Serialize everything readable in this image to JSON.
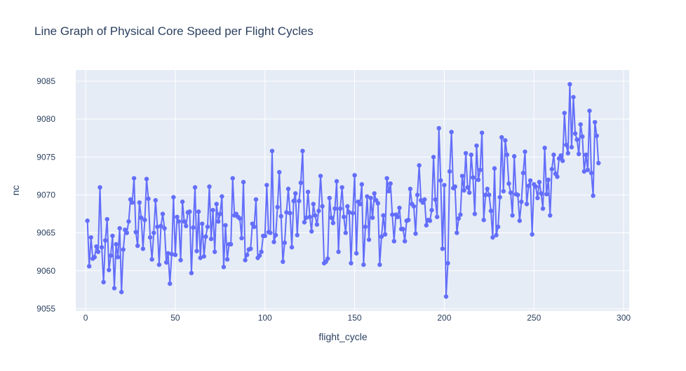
{
  "chart_data": {
    "type": "line",
    "title": "Line Graph of Physical Core Speed per Flight Cycles",
    "x_label": "flight_cycle",
    "y_label": "nc",
    "xlim": [
      -5.5,
      303.1
    ],
    "ylim": [
      9054.72,
      9086.48
    ],
    "xticks": [
      0,
      50,
      100,
      150,
      200,
      250,
      300
    ],
    "yticks": [
      9055,
      9060,
      9065,
      9070,
      9075,
      9080,
      9085
    ],
    "grid": true,
    "series": [
      {
        "name": "nc",
        "color": "#636efa",
        "x": [
          1,
          2,
          3,
          4,
          5,
          6,
          7,
          8,
          9,
          10,
          11,
          12,
          13,
          14,
          15,
          16,
          17,
          18,
          19,
          20,
          21,
          22,
          23,
          24,
          25,
          26,
          27,
          28,
          29,
          30,
          31,
          32,
          33,
          34,
          35,
          36,
          37,
          38,
          39,
          40,
          41,
          42,
          43,
          44,
          45,
          46,
          47,
          48,
          49,
          50,
          51,
          52,
          53,
          54,
          55,
          56,
          57,
          58,
          59,
          60,
          61,
          62,
          63,
          64,
          65,
          66,
          67,
          68,
          69,
          70,
          71,
          72,
          73,
          74,
          75,
          76,
          77,
          78,
          79,
          80,
          81,
          82,
          83,
          84,
          85,
          86,
          87,
          88,
          89,
          90,
          91,
          92,
          93,
          94,
          95,
          96,
          97,
          98,
          99,
          100,
          101,
          102,
          103,
          104,
          105,
          106,
          107,
          108,
          109,
          110,
          111,
          112,
          113,
          114,
          115,
          116,
          117,
          118,
          119,
          120,
          121,
          122,
          123,
          124,
          125,
          126,
          127,
          128,
          129,
          130,
          131,
          132,
          133,
          134,
          135,
          136,
          137,
          138,
          139,
          140,
          141,
          142,
          143,
          144,
          145,
          146,
          147,
          148,
          149,
          150,
          151,
          152,
          153,
          154,
          155,
          156,
          157,
          158,
          159,
          160,
          161,
          162,
          163,
          164,
          165,
          166,
          167,
          168,
          169,
          170,
          171,
          172,
          173,
          174,
          175,
          176,
          177,
          178,
          179,
          180,
          181,
          182,
          183,
          184,
          185,
          186,
          187,
          188,
          189,
          190,
          191,
          192,
          193,
          194,
          195,
          196,
          197,
          198,
          199,
          200,
          201,
          202,
          203,
          204,
          205,
          206,
          207,
          208,
          209,
          210,
          211,
          212,
          213,
          214,
          215,
          216,
          217,
          218,
          219,
          220,
          221,
          222,
          223,
          224,
          225,
          226,
          227,
          228,
          229,
          230,
          231,
          232,
          233,
          234,
          235,
          236,
          237,
          238,
          239,
          240,
          241,
          242,
          243,
          244,
          245,
          246,
          247,
          248,
          249,
          250,
          251,
          252,
          253,
          254,
          255,
          256,
          257,
          258,
          259,
          260,
          261,
          262,
          263,
          264,
          265,
          266,
          267,
          268,
          269,
          270,
          271,
          272,
          273,
          274,
          275,
          276,
          277,
          278,
          279,
          280,
          281,
          282,
          283,
          284,
          285,
          286
        ],
        "values": [
          9066.6,
          9060.6,
          9064.4,
          9061.6,
          9061.8,
          9063.2,
          9062.5,
          9071,
          9063.1,
          9058.5,
          9064,
          9066.8,
          9060.1,
          9062,
          9064.6,
          9057.7,
          9063.5,
          9061.8,
          9065.6,
          9057.2,
          9062.8,
          9065.4,
          9065,
          9066.5,
          9069.4,
          9069,
          9072.2,
          9065.1,
          9063.3,
          9069,
          9067,
          9062.9,
          9066.7,
          9072.1,
          9069.5,
          9064.4,
          9061.5,
          9065,
          9069.3,
          9065.8,
          9060.8,
          9065.9,
          9067.5,
          9065.6,
          9061.1,
          9062.3,
          9058.3,
          9062.2,
          9069.7,
          9062.1,
          9067.1,
          9066.5,
          9061.4,
          9069.1,
          9066.5,
          9065.9,
          9067.7,
          9067.8,
          9059.7,
          9065.7,
          9071,
          9062.6,
          9067.8,
          9061.7,
          9066.2,
          9061.9,
          9064.5,
          9065.8,
          9071.1,
          9064.2,
          9068,
          9062.5,
          9068.8,
          9066.5,
          9067.5,
          9069.8,
          9060.5,
          9066,
          9061.5,
          9063.5,
          9063.5,
          9072.2,
          9067.3,
          9067.5,
          9067.1,
          9066.9,
          9064.3,
          9071.7,
          9061.4,
          9062.1,
          9062.8,
          9062.9,
          9066.2,
          9065.8,
          9069.4,
          9061.7,
          9062,
          9062.5,
          9064.6,
          9064.6,
          9071.3,
          9065.1,
          9065,
          9075.8,
          9063.8,
          9064.7,
          9068.4,
          9073,
          9067.2,
          9061.2,
          9063.7,
          9067.7,
          9070.8,
          9067.6,
          9063.1,
          9069.2,
          9070.2,
          9064.7,
          9069.2,
          9071.6,
          9075.8,
          9066.4,
          9067,
          9070.4,
          9067.1,
          9065.2,
          9068.8,
          9067.3,
          9066.1,
          9067.9,
          9072.5,
          9068.5,
          9061,
          9061.2,
          9061.6,
          9069.6,
          9067,
          9066.3,
          9068.2,
          9071.8,
          9062.5,
          9068.2,
          9071,
          9067.1,
          9065,
          9068.5,
          9067.7,
          9061,
          9067.6,
          9072.6,
          9062.3,
          9069.1,
          9068.8,
          9071.4,
          9060.8,
          9065.8,
          9069.8,
          9064.1,
          9069.6,
          9067,
          9070.2,
          9069.3,
          9068.9,
          9060.8,
          9064.5,
          9067.3,
          9064.8,
          9072.2,
          9070.5,
          9071.5,
          9067.4,
          9063.9,
          9067.4,
          9067.1,
          9068.3,
          9065.5,
          9065.5,
          9063.9,
          9066.6,
          9066.7,
          9070.8,
          9068.8,
          9068.5,
          9064.9,
          9070,
          9073.9,
          9069.3,
          9069,
          9069.4,
          9066,
          9066.7,
          9066.6,
          9068,
          9075,
          9069.4,
          9067.1,
          9078.8,
          9071.9,
          9062.9,
          9071.3,
          9056.6,
          9061,
          9073.1,
          9078.3,
          9070.9,
          9071.1,
          9065,
          9066.9,
          9067.4,
          9072.5,
          9070.6,
          9075.5,
          9071,
          9070.3,
          9075.3,
          9072.3,
          9067.5,
          9076.5,
          9072,
          9073.3,
          9078.2,
          9066.7,
          9070,
          9070.8,
          9070,
          9067.9,
          9064.4,
          9073.5,
          9064.7,
          9065.8,
          9069.7,
          9077.6,
          9070.5,
          9077.2,
          9075.3,
          9071.5,
          9070.3,
          9067.3,
          9075.1,
          9070.1,
          9070,
          9066.6,
          9069.1,
          9072.9,
          9075.7,
          9068.8,
          9071.2,
          9071.9,
          9064.8,
          9071.4,
          9071.1,
          9069.6,
          9071.7,
          9070.2,
          9068.2,
          9076.2,
          9070.1,
          9072,
          9067.3,
          9073.4,
          9075.3,
          9072.8,
          9072.4,
          9074.8,
          9075.2,
          9074.5,
          9080.8,
          9076.6,
          9075.5,
          9084.6,
          9076.3,
          9082.9,
          9078.1,
          9077.3,
          9075.4,
          9079.3,
          9077.7,
          9073.1,
          9075.3,
          9073.3,
          9081.1,
          9072.9,
          9069.9,
          9079.6,
          9077.8,
          9074.2
        ]
      }
    ]
  }
}
